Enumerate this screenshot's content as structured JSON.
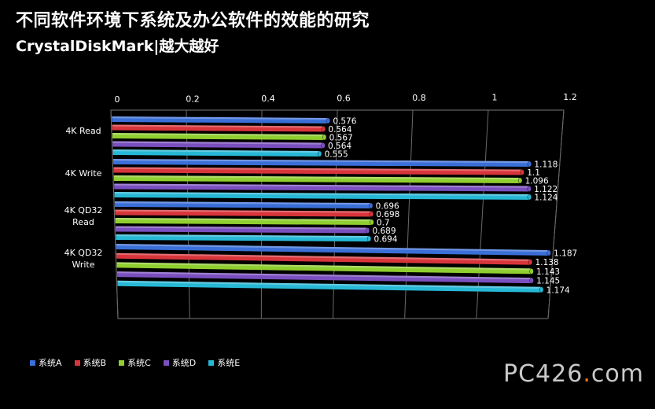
{
  "title": "不同软件环境下系统及办公软件的效能的研究",
  "subtitle": "CrystalDiskMark|越大越好",
  "watermark": {
    "main": "PC426",
    "accent": ".",
    "tail": "com"
  },
  "chart_data": {
    "type": "bar",
    "orientation": "horizontal",
    "categories": [
      "4K Read",
      "4K Write",
      "4K QD32 Read",
      "4K QD32 Write"
    ],
    "category_lines": [
      [
        "4K Read"
      ],
      [
        "4K Write"
      ],
      [
        "4K QD32",
        "Read"
      ],
      [
        "4K QD32",
        "Write"
      ]
    ],
    "series": [
      {
        "name": "系统A",
        "color": "#3b6fd8",
        "values": [
          0.576,
          1.118,
          0.696,
          1.187
        ]
      },
      {
        "name": "系统B",
        "color": "#d8353b",
        "values": [
          0.564,
          1.1,
          0.698,
          1.138
        ]
      },
      {
        "name": "系统C",
        "color": "#8fcf2f",
        "values": [
          0.567,
          1.096,
          0.7,
          1.143
        ]
      },
      {
        "name": "系统D",
        "color": "#7a4fbf",
        "values": [
          0.564,
          1.122,
          0.689,
          1.145
        ]
      },
      {
        "name": "系统E",
        "color": "#27b8d6",
        "values": [
          0.555,
          1.124,
          0.694,
          1.174
        ]
      }
    ],
    "value_labels": [
      [
        "0.576",
        "1.118",
        "0.696",
        "1.187"
      ],
      [
        "0.564",
        "1.1",
        "0.698",
        "1.138"
      ],
      [
        "0.567",
        "1.096",
        "0.7",
        "1.143"
      ],
      [
        "0.564",
        "1.122",
        "0.689",
        "1.145"
      ],
      [
        "0.555",
        "1.124",
        "0.694",
        "1.174"
      ]
    ],
    "xlim": [
      0,
      1.2
    ],
    "ticks": [
      0,
      0.2,
      0.4,
      0.6,
      0.8,
      1,
      1.2
    ],
    "tick_labels": [
      "0",
      "0.2",
      "0.4",
      "0.6",
      "0.8",
      "1",
      "1.2"
    ],
    "grid": true,
    "legend_position": "bottom-left",
    "style": "3d-perspective"
  }
}
